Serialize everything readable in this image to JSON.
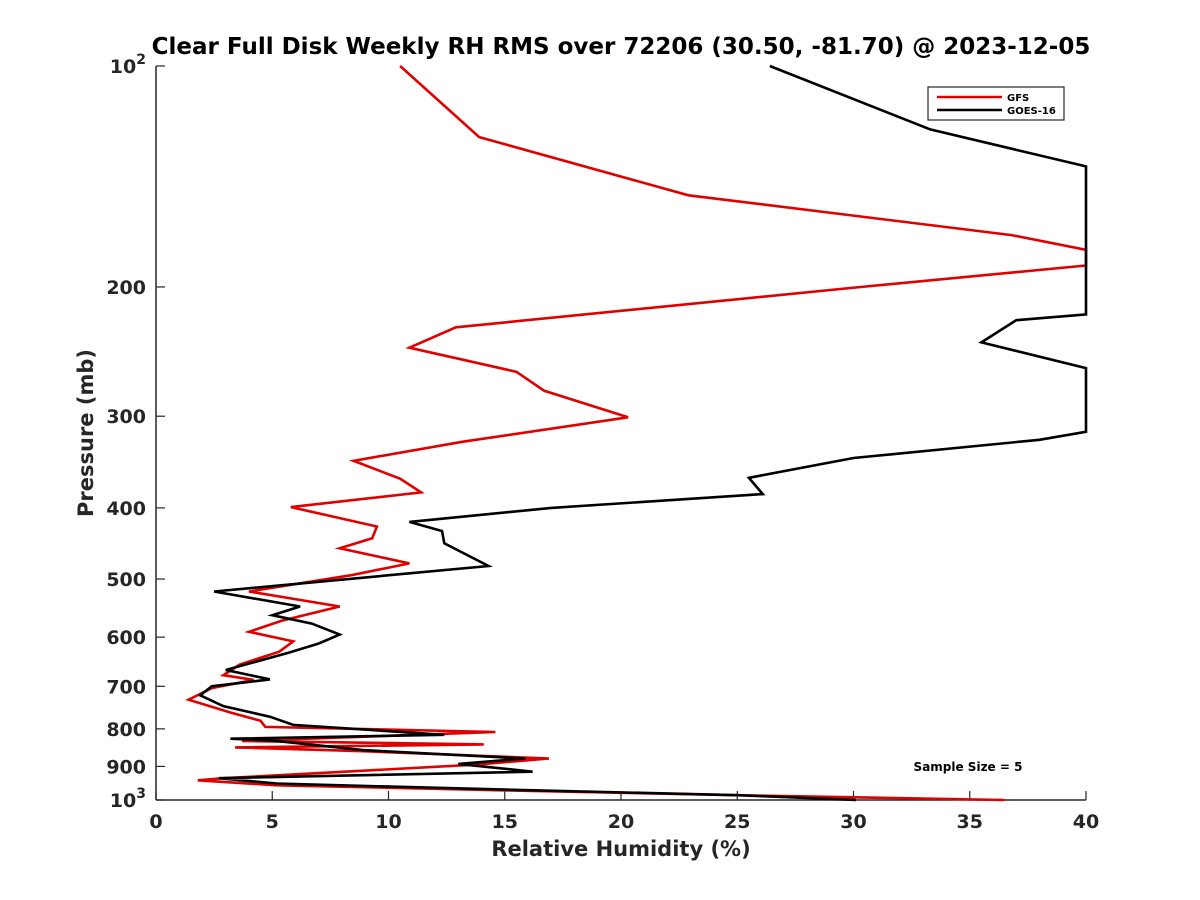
{
  "chart_data": {
    "type": "line",
    "title": "Clear Full Disk Weekly RH RMS over 72206 (30.50, -81.70) @ 2023-12-05",
    "xlabel": "Relative Humidity (%)",
    "ylabel": "Pressure (mb)",
    "xlim": [
      0,
      40
    ],
    "ylim": [
      100,
      1000
    ],
    "y_scale": "log",
    "y_reversed": true,
    "grid": false,
    "legend_position": "top-right",
    "x_ticks": [
      "0",
      "5",
      "10",
      "15",
      "20",
      "25",
      "30",
      "35",
      "40"
    ],
    "y_ticks": [
      {
        "value": 100,
        "base": "10",
        "exp": "2"
      },
      {
        "value": 200,
        "label": "200"
      },
      {
        "value": 300,
        "label": "300"
      },
      {
        "value": 400,
        "label": "400"
      },
      {
        "value": 500,
        "label": "500"
      },
      {
        "value": 600,
        "label": "600"
      },
      {
        "value": 700,
        "label": "700"
      },
      {
        "value": 800,
        "label": "800"
      },
      {
        "value": 900,
        "label": "900"
      },
      {
        "value": 1000,
        "base": "10",
        "exp": "3"
      }
    ],
    "annotation": "Sample Size = 5",
    "series": [
      {
        "name": "GFS",
        "color": "#e00000",
        "points": [
          [
            10.5,
            100
          ],
          [
            13.9,
            125
          ],
          [
            22.9,
            150
          ],
          [
            36.8,
            170
          ],
          [
            40,
            178
          ],
          [
            40,
            187
          ],
          [
            30.3,
            200
          ],
          [
            12.9,
            227
          ],
          [
            10.9,
            242
          ],
          [
            15.5,
            261
          ],
          [
            16.7,
            277
          ],
          [
            20.3,
            301
          ],
          [
            13.2,
            325
          ],
          [
            8.5,
            345
          ],
          [
            10.5,
            365
          ],
          [
            11.4,
            381
          ],
          [
            5.8,
            399
          ],
          [
            9.5,
            424
          ],
          [
            9.3,
            440
          ],
          [
            7.9,
            454
          ],
          [
            10.9,
            476
          ],
          [
            8.4,
            494
          ],
          [
            4.0,
            520
          ],
          [
            7.9,
            545
          ],
          [
            5.4,
            570
          ],
          [
            4.0,
            590
          ],
          [
            5.9,
            608
          ],
          [
            5.3,
            628
          ],
          [
            3.6,
            654
          ],
          [
            2.9,
            676
          ],
          [
            4.2,
            686
          ],
          [
            2.4,
            704
          ],
          [
            1.4,
            730
          ],
          [
            3.2,
            760
          ],
          [
            4.5,
            780
          ],
          [
            4.7,
            795
          ],
          [
            14.6,
            808
          ],
          [
            3.7,
            831
          ],
          [
            14.1,
            840
          ],
          [
            3.4,
            848
          ],
          [
            8.9,
            858
          ],
          [
            16.9,
            878
          ],
          [
            13.8,
            895
          ],
          [
            2.9,
            934
          ],
          [
            1.8,
            940
          ],
          [
            5.2,
            955
          ],
          [
            14.9,
            970
          ],
          [
            25.0,
            985
          ],
          [
            36.5,
            1000
          ]
        ]
      },
      {
        "name": "GOES-16",
        "color": "#000000",
        "points": [
          [
            26.4,
            100
          ],
          [
            33.3,
            122
          ],
          [
            40,
            137
          ],
          [
            40,
            218
          ],
          [
            37.0,
            222
          ],
          [
            35.5,
            238
          ],
          [
            40,
            258
          ],
          [
            40,
            315
          ],
          [
            38.0,
            323
          ],
          [
            30.0,
            342
          ],
          [
            25.5,
            364
          ],
          [
            26.1,
            383
          ],
          [
            17.0,
            400
          ],
          [
            10.9,
            418
          ],
          [
            12.3,
            430
          ],
          [
            12.4,
            447
          ],
          [
            14.3,
            480
          ],
          [
            2.5,
            520
          ],
          [
            6.2,
            545
          ],
          [
            5.0,
            560
          ],
          [
            6.7,
            575
          ],
          [
            7.9,
            595
          ],
          [
            7.0,
            612
          ],
          [
            5.7,
            630
          ],
          [
            3.0,
            665
          ],
          [
            4.9,
            685
          ],
          [
            2.4,
            700
          ],
          [
            1.9,
            720
          ],
          [
            2.9,
            745
          ],
          [
            4.9,
            770
          ],
          [
            5.9,
            790
          ],
          [
            12.4,
            815
          ],
          [
            3.2,
            825
          ],
          [
            5.0,
            830
          ],
          [
            8.9,
            855
          ],
          [
            15.9,
            878
          ],
          [
            13.0,
            893
          ],
          [
            16.2,
            915
          ],
          [
            2.7,
            934
          ],
          [
            5.2,
            950
          ],
          [
            15.0,
            968
          ],
          [
            25.0,
            985
          ],
          [
            30.1,
            1000
          ]
        ]
      }
    ]
  }
}
